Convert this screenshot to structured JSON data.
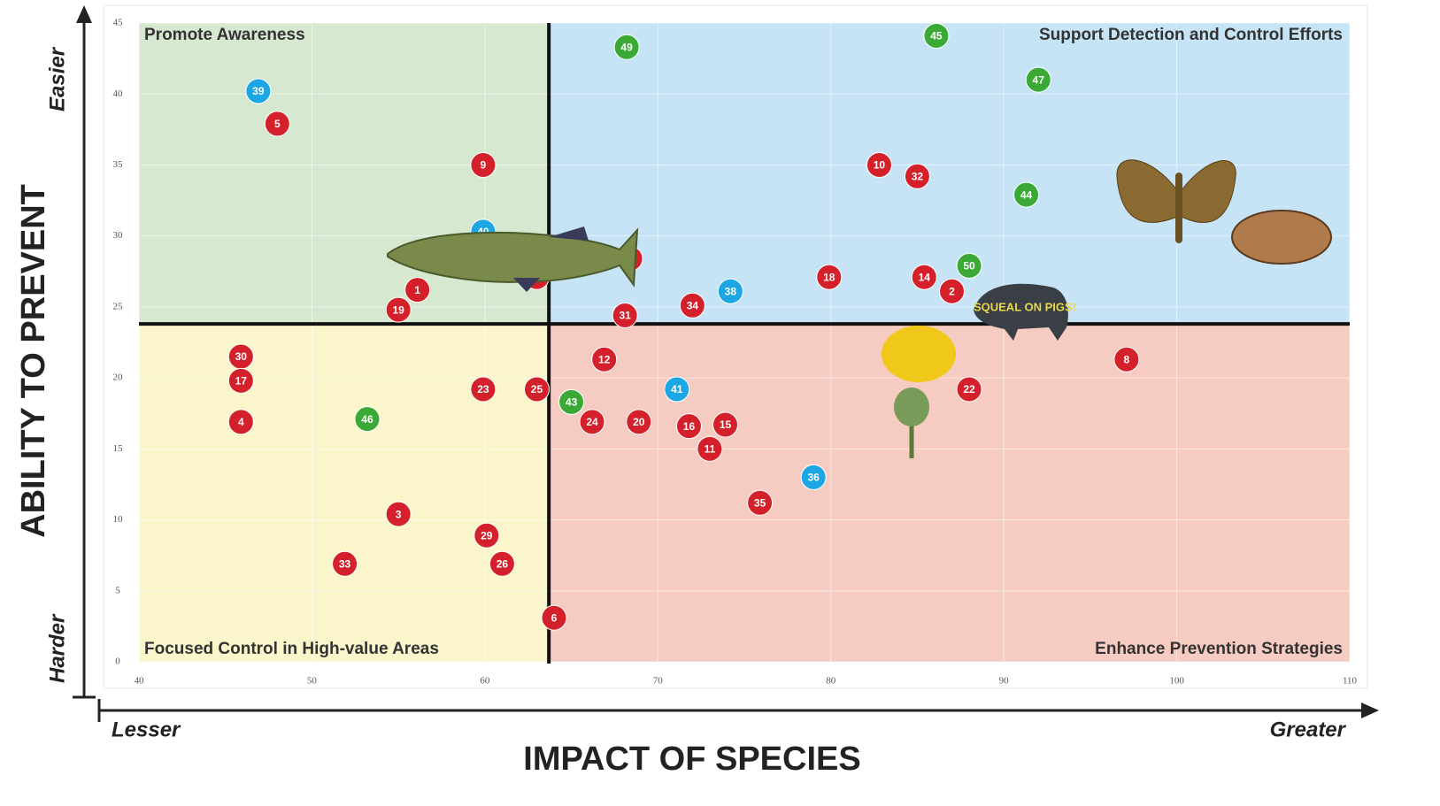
{
  "chart_data": {
    "type": "scatter",
    "x_label": "IMPACT OF SPECIES",
    "y_label": "ABILITY TO PREVENT",
    "x_low": "Lesser",
    "x_high": "Greater",
    "y_low": "Harder",
    "y_high": "Easier",
    "xlim": [
      40,
      110
    ],
    "xticks": [
      40,
      50,
      60,
      70,
      80,
      90,
      100,
      110
    ],
    "ylim": [
      0,
      45
    ],
    "yticks": [
      0,
      5,
      10,
      15,
      20,
      25,
      30,
      35,
      40,
      45
    ],
    "grid": true,
    "dividers": {
      "x": 63.7,
      "y": 23.8
    },
    "quadrants": [
      {
        "label": "Promote Awareness",
        "color": "#d6e8d0",
        "corner": "top-left"
      },
      {
        "label": "Support Detection and Control Efforts",
        "color": "#c6e4f6",
        "corner": "top-right"
      },
      {
        "label": "Focused Control in High-value Areas",
        "color": "#fbf5cb",
        "corner": "bottom-left"
      },
      {
        "label": "Enhance Prevention Strategies",
        "color": "#f5cbc2",
        "corner": "bottom-right"
      }
    ],
    "badge": "SQUEAL ON PIGS!",
    "series": [
      {
        "color": "#d3202a",
        "labels": [
          5,
          9,
          1,
          19,
          28,
          7,
          10,
          32,
          14,
          2,
          18,
          34,
          31,
          30,
          17,
          4,
          23,
          25,
          24,
          20,
          12,
          16,
          15,
          11,
          35,
          22,
          8,
          3,
          29,
          26,
          33,
          6
        ],
        "x": [
          48.0,
          59.9,
          56.1,
          55.0,
          63.0,
          68.4,
          82.8,
          85.0,
          85.4,
          87.0,
          79.9,
          72.0,
          68.1,
          45.9,
          45.9,
          45.9,
          59.9,
          63.0,
          66.2,
          68.9,
          66.9,
          71.8,
          73.9,
          73.0,
          75.9,
          88.0,
          97.1,
          55.0,
          60.1,
          61.0,
          51.9,
          64.0
        ],
        "values": [
          37.9,
          35.0,
          26.2,
          24.8,
          27.1,
          28.4,
          35.0,
          34.2,
          27.1,
          26.1,
          27.1,
          25.1,
          24.4,
          21.5,
          19.8,
          16.9,
          19.2,
          19.2,
          16.9,
          16.9,
          21.3,
          16.6,
          16.7,
          15.0,
          11.2,
          19.2,
          21.3,
          10.4,
          8.9,
          6.9,
          6.9,
          3.1
        ]
      },
      {
        "color": "#1da6e6",
        "labels": [
          39,
          40,
          38,
          41,
          36
        ],
        "x": [
          46.9,
          59.9,
          74.2,
          71.1,
          79.0
        ],
        "values": [
          40.2,
          30.3,
          26.1,
          19.2,
          13.0
        ]
      },
      {
        "color": "#3aa935",
        "labels": [
          49,
          45,
          47,
          44,
          50,
          46,
          43
        ],
        "x": [
          68.2,
          86.1,
          92.0,
          91.3,
          88.0,
          53.2,
          65.0
        ],
        "values": [
          43.3,
          44.1,
          41.0,
          32.9,
          27.9,
          17.1,
          18.3
        ]
      }
    ]
  }
}
